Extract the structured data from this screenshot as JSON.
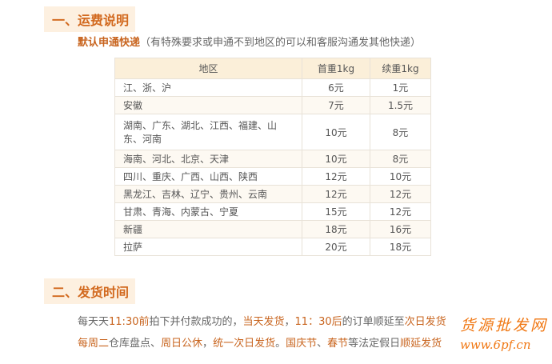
{
  "section1": {
    "title": "一、运费说明",
    "default_courier": "默认申通快递",
    "note": "（有特殊要求或申通不到地区的可以和客服沟通发其他快递）"
  },
  "table": {
    "headers": [
      "地区",
      "首重1kg",
      "续重1kg"
    ],
    "rows": [
      [
        "江、浙、沪",
        "6元",
        "1元"
      ],
      [
        "安徽",
        "7元",
        "1.5元"
      ],
      [
        "湖南、广东、湖北、江西、福建、山东、河南",
        "10元",
        "8元"
      ],
      [
        "海南、河北、北京、天津",
        "10元",
        "8元"
      ],
      [
        "四川、重庆、广西、山西、陕西",
        "12元",
        "10元"
      ],
      [
        "黑龙江、吉林、辽宁、贵州、云南",
        "12元",
        "12元"
      ],
      [
        "甘肃、青海、内蒙古、宁夏",
        "15元",
        "12元"
      ],
      [
        "新疆",
        "18元",
        "16元"
      ],
      [
        "拉萨",
        "20元",
        "18元"
      ]
    ]
  },
  "section2": {
    "title": "二、发货时间",
    "line1": [
      {
        "t": "每天天",
        "h": false
      },
      {
        "t": "11:30前",
        "h": true
      },
      {
        "t": "拍下并付款成功的，",
        "h": false
      },
      {
        "t": "当天发货",
        "h": true
      },
      {
        "t": "，",
        "h": false
      },
      {
        "t": "11：30后",
        "h": true
      },
      {
        "t": "的订单顺延至",
        "h": false
      },
      {
        "t": "次日发货",
        "h": true
      }
    ],
    "line2": [
      {
        "t": "每周二",
        "h": true
      },
      {
        "t": "仓库盘点、",
        "h": false
      },
      {
        "t": "周日公休",
        "h": true
      },
      {
        "t": "，",
        "h": false
      },
      {
        "t": "统一次日发货",
        "h": true
      },
      {
        "t": "。",
        "h": false
      },
      {
        "t": "国庆节",
        "h": true
      },
      {
        "t": "、",
        "h": false
      },
      {
        "t": "春节",
        "h": true
      },
      {
        "t": "等法定假日",
        "h": false
      },
      {
        "t": "顺延发货",
        "h": true
      }
    ]
  },
  "watermark": {
    "text1": "货源批发网",
    "text2": "www.6pf.cn"
  },
  "colors": {
    "accent": "#c8641e",
    "header_bg": "#fbefd9"
  }
}
